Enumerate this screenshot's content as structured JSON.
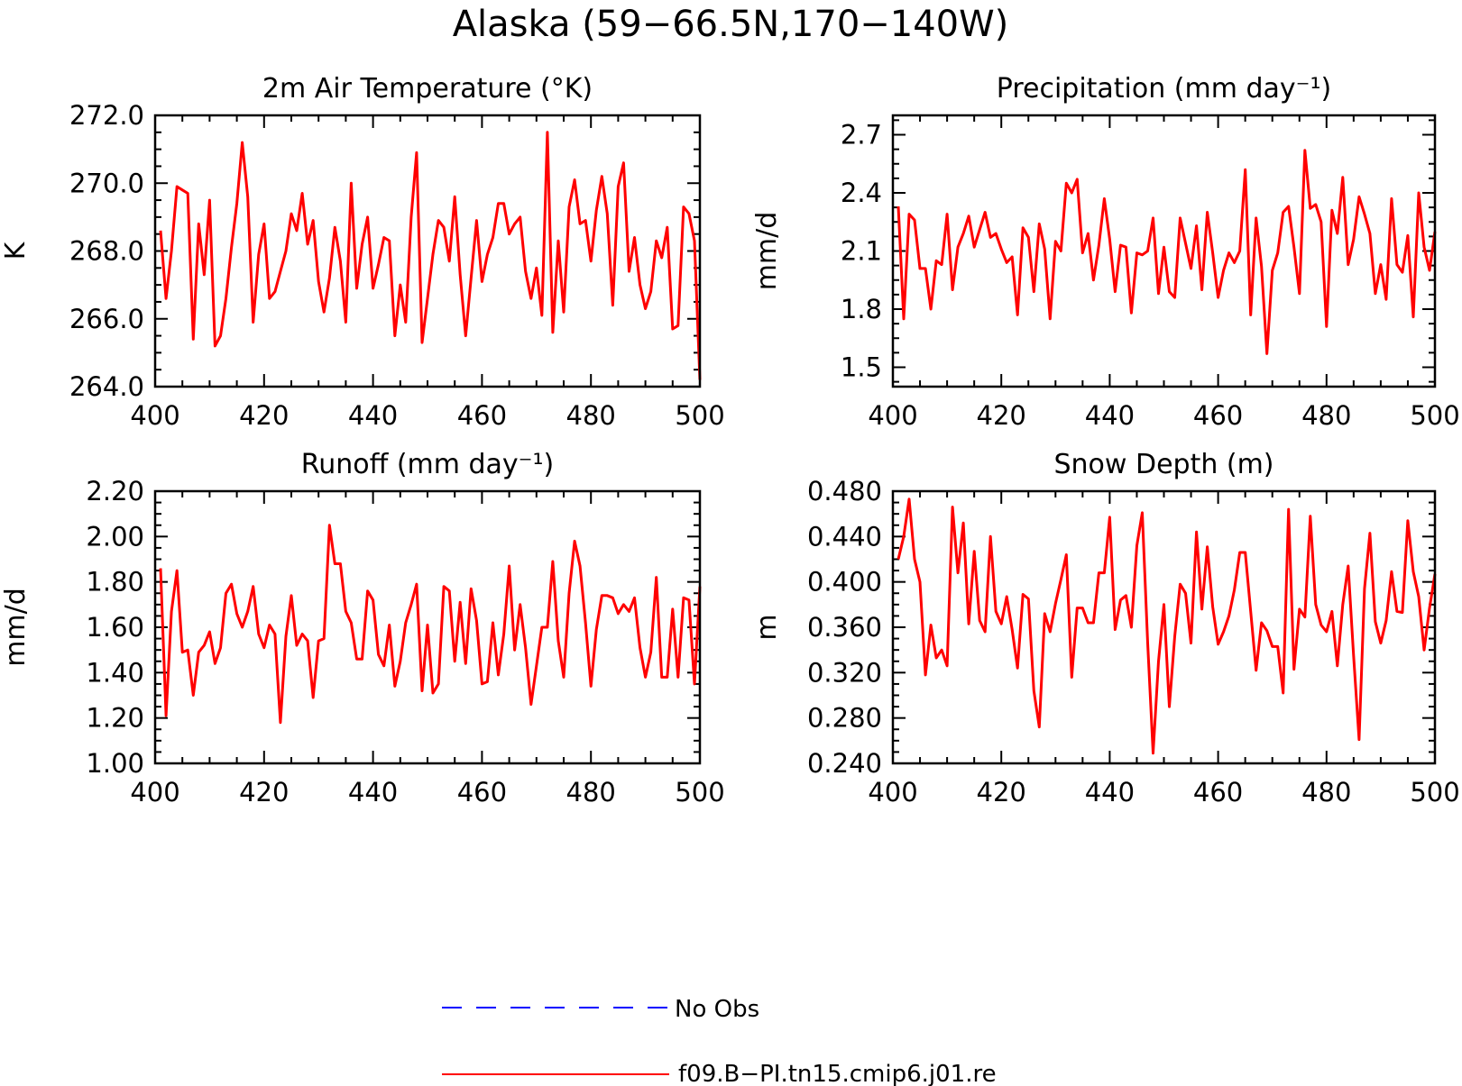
{
  "figure_title": "Alaska (59−66.5N,170−140W)",
  "legend": [
    {
      "label": "No Obs",
      "color": "#0000ff",
      "style": "dashed"
    },
    {
      "label": "f09.B−PI.tn15.cmip6.j01.re",
      "color": "#ff0000",
      "style": "solid"
    }
  ],
  "colors": {
    "model": "#ff0000",
    "obs": "#0000ff",
    "axis": "#000000"
  },
  "chart_data": [
    {
      "type": "line",
      "title": "2m Air Temperature (°K)",
      "xlabel": "",
      "ylabel": "K",
      "xlim": [
        400,
        500
      ],
      "ylim": [
        264.0,
        272.0
      ],
      "xticks": [
        400,
        420,
        440,
        460,
        480,
        500
      ],
      "yticks": [
        264.0,
        266.0,
        268.0,
        270.0,
        272.0
      ],
      "ytick_labels": [
        "264.0",
        "266.0",
        "268.0",
        "270.0",
        "272.0"
      ],
      "grid": false,
      "x_start": 401,
      "series": [
        {
          "name": "f09.B−PI.tn15.cmip6.j01.re",
          "values": [
            268.6,
            266.6,
            268.0,
            269.9,
            269.8,
            269.7,
            265.4,
            268.8,
            267.3,
            269.5,
            265.2,
            265.5,
            266.6,
            268.1,
            269.4,
            271.2,
            269.6,
            265.9,
            267.9,
            268.8,
            266.6,
            266.8,
            267.4,
            268.0,
            269.1,
            268.6,
            269.7,
            268.2,
            268.9,
            267.1,
            266.2,
            267.2,
            268.7,
            267.7,
            265.9,
            270.0,
            266.9,
            268.2,
            269.0,
            266.9,
            267.6,
            268.4,
            268.3,
            265.5,
            267.0,
            265.9,
            269.0,
            270.9,
            265.3,
            266.6,
            267.9,
            268.9,
            268.7,
            267.7,
            269.6,
            267.3,
            265.5,
            267.2,
            268.9,
            267.1,
            267.9,
            268.4,
            269.4,
            269.4,
            268.5,
            268.8,
            269.0,
            267.4,
            266.6,
            267.5,
            266.1,
            271.5,
            265.6,
            268.3,
            266.2,
            269.3,
            270.1,
            268.8,
            268.9,
            267.7,
            269.2,
            270.2,
            269.1,
            266.4,
            269.9,
            270.6,
            267.4,
            268.4,
            267.0,
            266.3,
            266.8,
            268.3,
            267.8,
            268.7,
            265.7,
            265.8,
            269.3,
            269.1,
            268.3,
            264.2
          ]
        }
      ]
    },
    {
      "type": "line",
      "title": "Precipitation (mm day⁻¹)",
      "xlabel": "",
      "ylabel": "mm/d",
      "xlim": [
        400,
        500
      ],
      "ylim": [
        1.4,
        2.8
      ],
      "xticks": [
        400,
        420,
        440,
        460,
        480,
        500
      ],
      "yticks": [
        1.5,
        1.8,
        2.1,
        2.4,
        2.7
      ],
      "ytick_labels": [
        "1.5",
        "1.8",
        "2.1",
        "2.4",
        "2.7"
      ],
      "grid": false,
      "x_start": 401,
      "series": [
        {
          "name": "f09.B−PI.tn15.cmip6.j01.re",
          "values": [
            2.33,
            1.75,
            2.29,
            2.26,
            2.01,
            2.01,
            1.8,
            2.05,
            2.03,
            2.29,
            1.9,
            2.12,
            2.19,
            2.28,
            2.12,
            2.21,
            2.3,
            2.17,
            2.19,
            2.11,
            2.04,
            2.07,
            1.77,
            2.22,
            2.17,
            1.89,
            2.24,
            2.11,
            1.75,
            2.15,
            2.1,
            2.45,
            2.4,
            2.47,
            2.09,
            2.19,
            1.95,
            2.13,
            2.37,
            2.16,
            1.89,
            2.13,
            2.12,
            1.78,
            2.09,
            2.08,
            2.1,
            2.27,
            1.88,
            2.12,
            1.89,
            1.86,
            2.27,
            2.14,
            2.01,
            2.23,
            1.9,
            2.3,
            2.09,
            1.86,
            2.0,
            2.09,
            2.04,
            2.1,
            2.52,
            1.77,
            2.27,
            2.02,
            1.57,
            2.0,
            2.09,
            2.3,
            2.33,
            2.12,
            1.88,
            2.62,
            2.32,
            2.34,
            2.25,
            1.71,
            2.31,
            2.19,
            2.48,
            2.03,
            2.16,
            2.38,
            2.29,
            2.19,
            1.88,
            2.03,
            1.85,
            2.37,
            2.03,
            1.99,
            2.18,
            1.76,
            2.4,
            2.12,
            2.0,
            2.2
          ]
        }
      ]
    },
    {
      "type": "line",
      "title": "Runoff (mm day⁻¹)",
      "xlabel": "",
      "ylabel": "mm/d",
      "xlim": [
        400,
        500
      ],
      "ylim": [
        1.0,
        2.2
      ],
      "xticks": [
        400,
        420,
        440,
        460,
        480,
        500
      ],
      "yticks": [
        1.0,
        1.2,
        1.4,
        1.6,
        1.8,
        2.0,
        2.2
      ],
      "ytick_labels": [
        "1.00",
        "1.20",
        "1.40",
        "1.60",
        "1.80",
        "2.00",
        "2.20"
      ],
      "grid": false,
      "x_start": 401,
      "series": [
        {
          "name": "f09.B−PI.tn15.cmip6.j01.re",
          "values": [
            1.86,
            1.21,
            1.67,
            1.85,
            1.49,
            1.5,
            1.3,
            1.49,
            1.52,
            1.58,
            1.44,
            1.51,
            1.75,
            1.79,
            1.66,
            1.6,
            1.67,
            1.78,
            1.57,
            1.51,
            1.61,
            1.57,
            1.18,
            1.56,
            1.74,
            1.52,
            1.57,
            1.54,
            1.29,
            1.54,
            1.55,
            2.05,
            1.88,
            1.88,
            1.67,
            1.62,
            1.46,
            1.46,
            1.76,
            1.72,
            1.48,
            1.43,
            1.61,
            1.34,
            1.45,
            1.62,
            1.7,
            1.79,
            1.32,
            1.61,
            1.31,
            1.35,
            1.78,
            1.76,
            1.45,
            1.71,
            1.44,
            1.77,
            1.63,
            1.35,
            1.36,
            1.62,
            1.39,
            1.57,
            1.87,
            1.5,
            1.7,
            1.51,
            1.26,
            1.43,
            1.6,
            1.6,
            1.89,
            1.54,
            1.38,
            1.75,
            1.98,
            1.87,
            1.62,
            1.34,
            1.59,
            1.74,
            1.74,
            1.73,
            1.66,
            1.7,
            1.67,
            1.73,
            1.51,
            1.38,
            1.49,
            1.82,
            1.38,
            1.38,
            1.68,
            1.38,
            1.73,
            1.72,
            1.35,
            1.78
          ]
        }
      ]
    },
    {
      "type": "line",
      "title": "Snow Depth (m)",
      "xlabel": "",
      "ylabel": "m",
      "xlim": [
        400,
        500
      ],
      "ylim": [
        0.24,
        0.48
      ],
      "xticks": [
        400,
        420,
        440,
        460,
        480,
        500
      ],
      "yticks": [
        0.24,
        0.28,
        0.32,
        0.36,
        0.4,
        0.44,
        0.48
      ],
      "ytick_labels": [
        "0.240",
        "0.280",
        "0.320",
        "0.360",
        "0.400",
        "0.440",
        "0.480"
      ],
      "grid": false,
      "x_start": 401,
      "series": [
        {
          "name": "f09.B−PI.tn15.cmip6.j01.re",
          "values": [
            0.42,
            0.44,
            0.473,
            0.42,
            0.4,
            0.318,
            0.362,
            0.333,
            0.34,
            0.326,
            0.466,
            0.408,
            0.452,
            0.363,
            0.427,
            0.366,
            0.356,
            0.44,
            0.374,
            0.363,
            0.387,
            0.358,
            0.324,
            0.389,
            0.385,
            0.304,
            0.272,
            0.372,
            0.356,
            0.381,
            0.402,
            0.424,
            0.316,
            0.377,
            0.377,
            0.364,
            0.364,
            0.408,
            0.408,
            0.457,
            0.358,
            0.384,
            0.388,
            0.36,
            0.432,
            0.461,
            0.346,
            0.249,
            0.33,
            0.38,
            0.29,
            0.352,
            0.398,
            0.39,
            0.346,
            0.444,
            0.376,
            0.431,
            0.378,
            0.345,
            0.356,
            0.37,
            0.393,
            0.426,
            0.426,
            0.374,
            0.322,
            0.364,
            0.357,
            0.343,
            0.343,
            0.302,
            0.464,
            0.323,
            0.376,
            0.369,
            0.458,
            0.38,
            0.362,
            0.356,
            0.374,
            0.326,
            0.38,
            0.414,
            0.335,
            0.261,
            0.394,
            0.443,
            0.365,
            0.346,
            0.366,
            0.409,
            0.374,
            0.373,
            0.454,
            0.409,
            0.387,
            0.34,
            0.377,
            0.407
          ]
        }
      ]
    }
  ]
}
